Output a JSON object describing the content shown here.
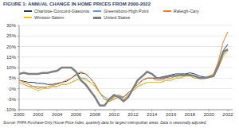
{
  "chart_data": {
    "type": "line",
    "title": "FIGURE 1: ANNUAL CHANGE IN HOME PRICES FROM 2000-2022",
    "note": "Source: FHFA Purchase-Only House Price Index, quarterly data for largest metropolitan areas. Data is seasonally adjusted.",
    "x": [
      2000,
      2000.5,
      2001,
      2001.5,
      2002,
      2002.5,
      2003,
      2003.5,
      2004,
      2004.5,
      2005,
      2005.5,
      2006,
      2006.5,
      2007,
      2007.5,
      2008,
      2008.5,
      2009,
      2009.5,
      2010,
      2010.5,
      2011,
      2011.5,
      2012,
      2012.5,
      2013,
      2013.5,
      2014,
      2014.5,
      2015,
      2015.5,
      2016,
      2016.5,
      2017,
      2017.5,
      2018,
      2018.5,
      2019,
      2019.5,
      2020,
      2020.5,
      2021,
      2021.5,
      2022
    ],
    "series": [
      {
        "name": "Charlotte-Concord-Gastonia",
        "color": "#1f3864",
        "values": [
          4,
          3.5,
          3,
          3,
          2.5,
          2.5,
          2,
          2,
          2.5,
          3,
          3.5,
          5,
          6.5,
          7.5,
          7,
          5,
          2,
          -2,
          -5,
          -6,
          -5,
          -4,
          -4,
          -2,
          0,
          2,
          4,
          5,
          5,
          5,
          5.5,
          6,
          6.5,
          7,
          7,
          7,
          7.5,
          7,
          6,
          5.5,
          5.5,
          6,
          10,
          18,
          21
        ]
      },
      {
        "name": "Greensboro-High Point",
        "color": "#5b9bd5",
        "values": [
          3,
          2,
          1,
          1,
          0,
          1,
          0,
          1,
          1,
          2,
          2,
          3,
          4,
          5,
          5,
          3,
          1,
          -2,
          -4,
          -5,
          -4,
          -3,
          -5,
          -3,
          -1,
          1,
          2,
          3,
          3,
          3,
          3,
          4,
          4,
          5,
          5,
          6,
          6,
          5,
          5,
          5,
          6,
          7,
          10,
          16,
          19
        ]
      },
      {
        "name": "Raleigh-Cary",
        "color": "#ed7d31",
        "values": [
          4,
          3,
          2,
          1,
          1,
          0.5,
          1,
          1.5,
          2,
          3,
          4,
          5,
          7,
          8,
          7,
          5,
          2,
          -2,
          -5,
          -6,
          -4,
          -3,
          -4,
          -2,
          0,
          2,
          4,
          5,
          5,
          4,
          4,
          5,
          5,
          6,
          6,
          6,
          6,
          6,
          5,
          5,
          5.5,
          7,
          13,
          22,
          27
        ]
      },
      {
        "name": "Winston-Salem",
        "color": "#ffc000",
        "values": [
          3,
          2,
          1,
          0,
          -1,
          0,
          0,
          1,
          1,
          2,
          2,
          3,
          4,
          5,
          4,
          3,
          1,
          -2,
          -5,
          -6,
          -5,
          -4,
          -5,
          -3,
          -1,
          1,
          2,
          3,
          3,
          3,
          3,
          4,
          4,
          5,
          5,
          6,
          6,
          5,
          5,
          5,
          6,
          7,
          10,
          15,
          18
        ]
      },
      {
        "name": "United States",
        "color": "#7f7f7f",
        "line_style": "bold",
        "values": [
          7,
          7.5,
          7,
          7,
          7,
          7.5,
          7.5,
          8,
          8.5,
          10,
          10,
          10,
          8,
          4,
          2,
          -1,
          -4,
          -8,
          -8,
          -5,
          -3,
          -4,
          -6,
          -4,
          0,
          4,
          6,
          8,
          7,
          5,
          5,
          5.5,
          6,
          6,
          6.5,
          6.5,
          6.5,
          6,
          5,
          5,
          5.5,
          6,
          11,
          17.5,
          18.5
        ]
      }
    ],
    "xlim": [
      2000,
      2022.5
    ],
    "xticks": [
      2000,
      2002,
      2004,
      2006,
      2008,
      2010,
      2012,
      2014,
      2016,
      2018,
      2020,
      2022
    ],
    "ylim": [
      -10,
      30
    ],
    "yticks": [
      {
        "value": -10,
        "label": "-10%"
      },
      {
        "value": -5,
        "label": "-5%"
      },
      {
        "value": 0,
        "label": "0%"
      },
      {
        "value": 5,
        "label": "5%"
      },
      {
        "value": 10,
        "label": "10%"
      },
      {
        "value": 15,
        "label": "15%"
      },
      {
        "value": 20,
        "label": "20%"
      },
      {
        "value": 25,
        "label": "25%"
      },
      {
        "value": 30,
        "label": "30%"
      }
    ],
    "grid": true,
    "legend": "top"
  }
}
